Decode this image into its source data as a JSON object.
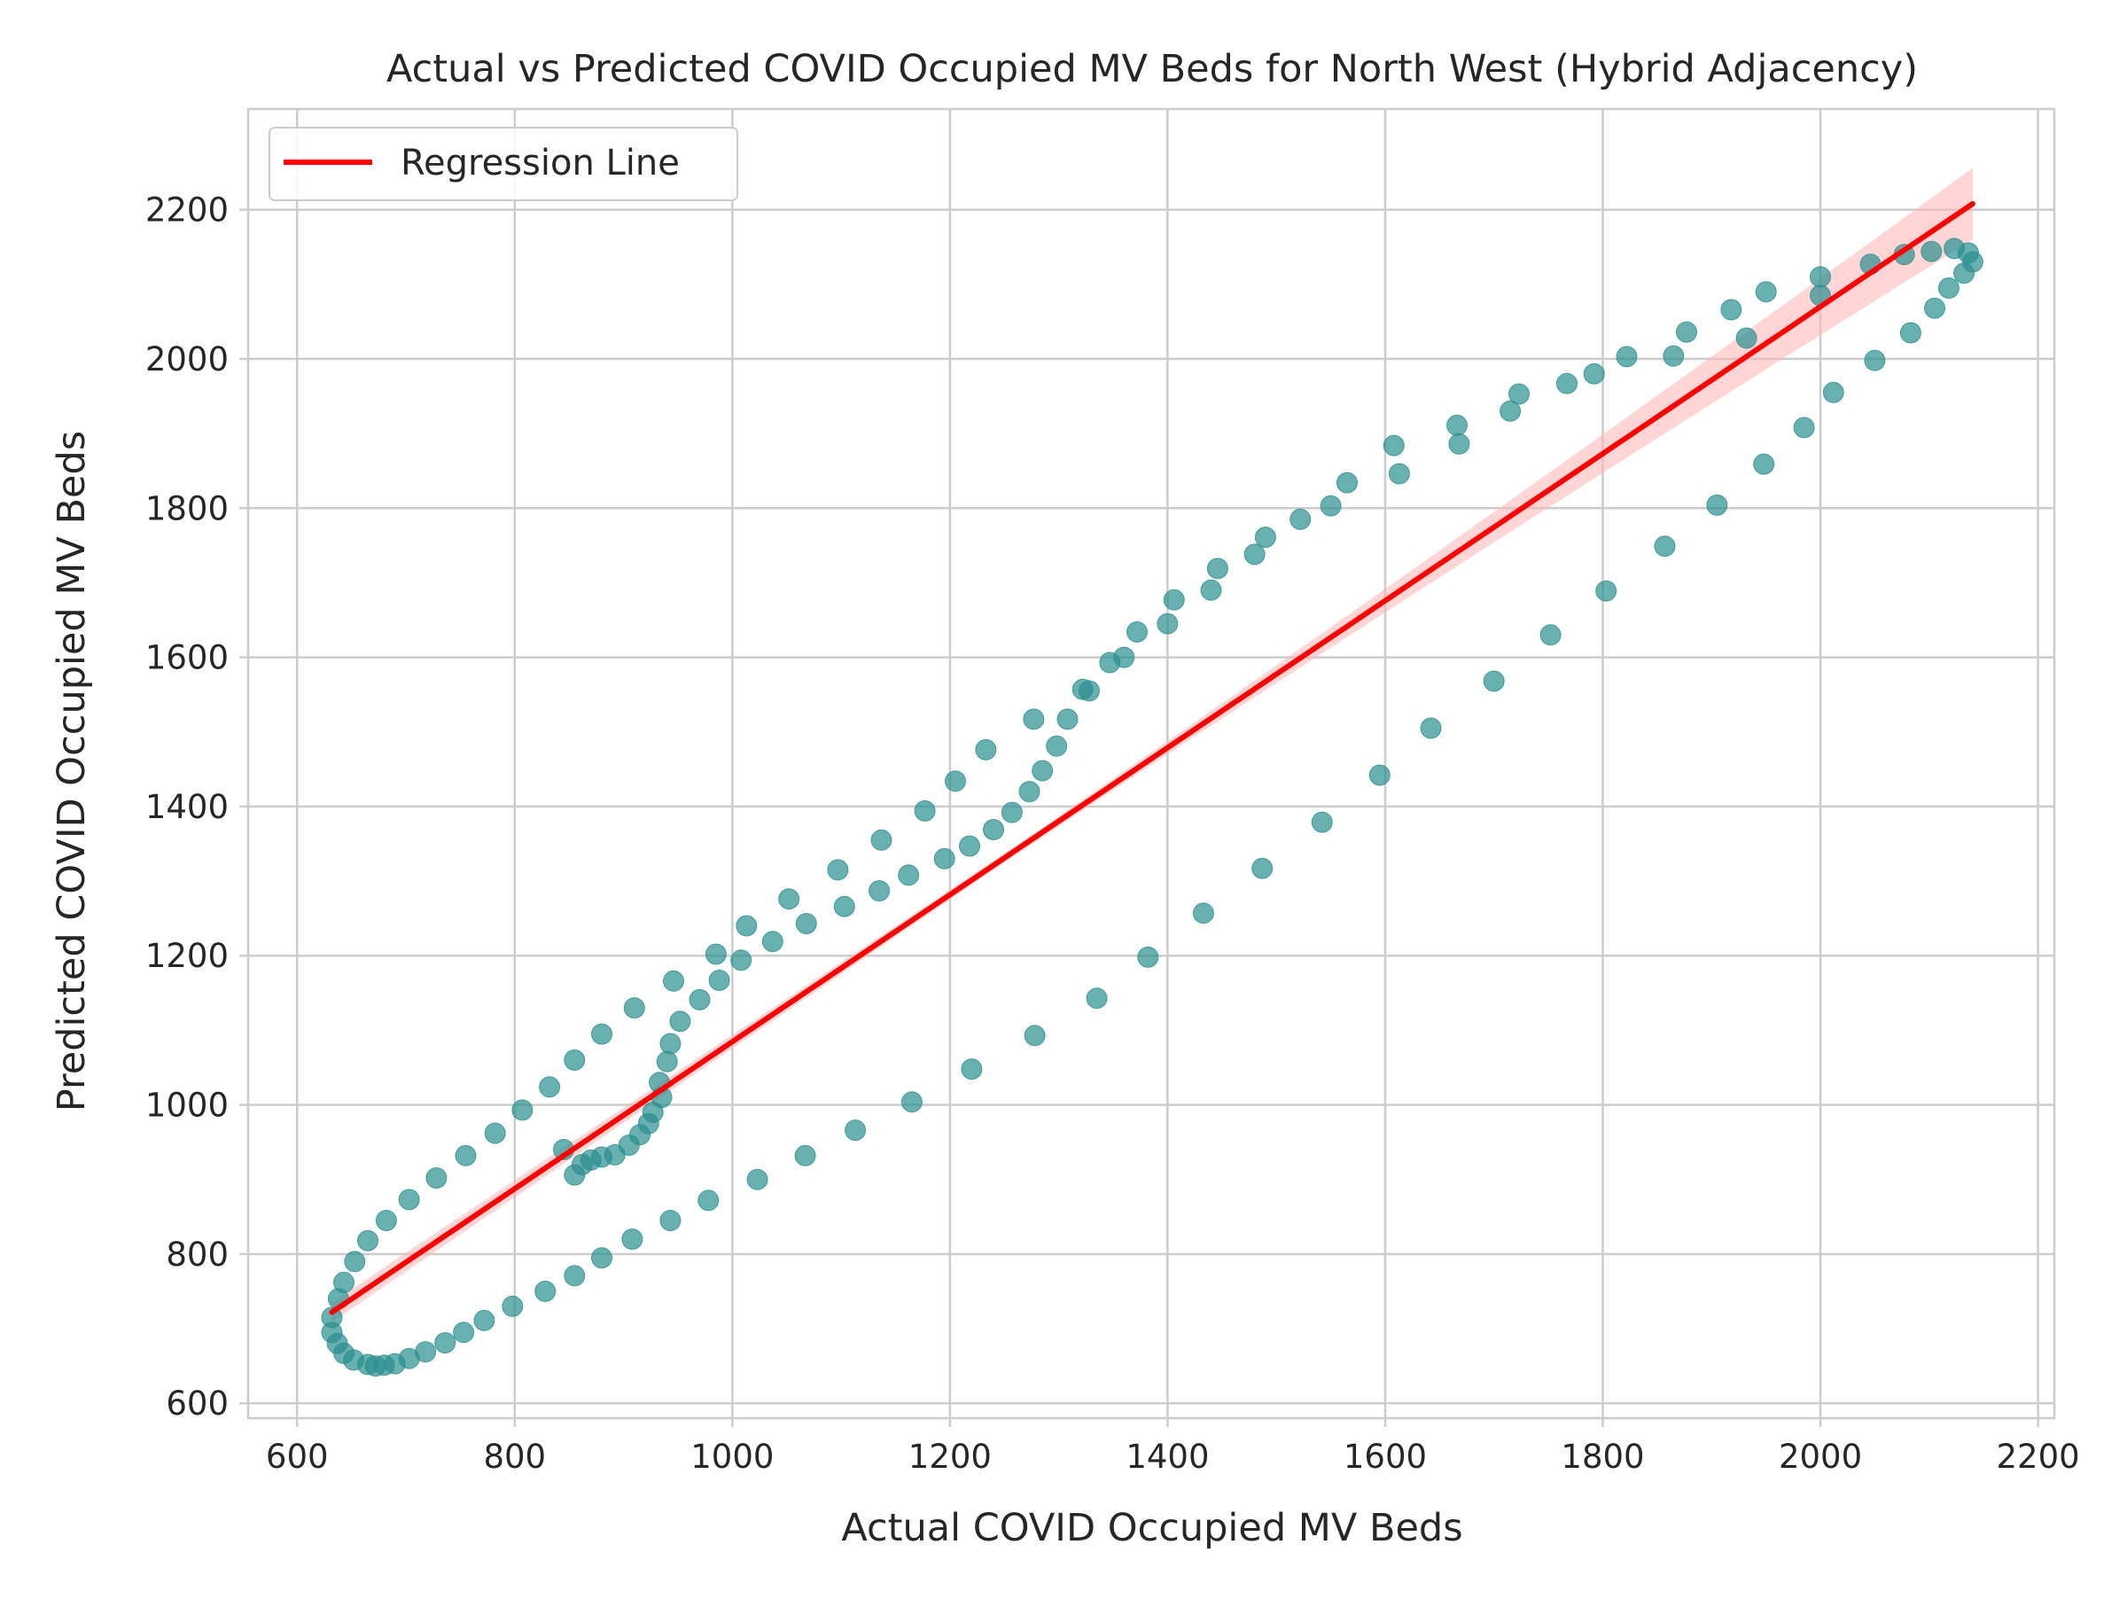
{
  "chart_data": {
    "type": "scatter",
    "title": "Actual vs Predicted COVID Occupied MV Beds for North West (Hybrid Adjacency)",
    "xlabel": "Actual COVID Occupied MV Beds",
    "ylabel": "Predicted COVID Occupied MV Beds",
    "xlim": [
      555,
      2215
    ],
    "ylim": [
      580,
      2335
    ],
    "xticks": [
      600,
      800,
      1000,
      1200,
      1400,
      1600,
      1800,
      2000,
      2200
    ],
    "yticks": [
      600,
      800,
      1000,
      1200,
      1400,
      1600,
      1800,
      2000,
      2200
    ],
    "grid": true,
    "legend": {
      "position": "top-left",
      "entries": [
        "Regression Line"
      ]
    },
    "colors": {
      "points": "#2a8f8f",
      "regression": "#ff0000",
      "ci_band": "#ffb3b3"
    },
    "regression_line": {
      "x": [
        632,
        2140
      ],
      "y": [
        722,
        2208
      ]
    },
    "ci_band": {
      "half_width_start": 13,
      "half_width_mid": 6,
      "half_width_end": 48
    },
    "points": [
      {
        "x": 632,
        "y": 715
      },
      {
        "x": 638,
        "y": 740
      },
      {
        "x": 643,
        "y": 762
      },
      {
        "x": 653,
        "y": 790
      },
      {
        "x": 665,
        "y": 818
      },
      {
        "x": 682,
        "y": 845
      },
      {
        "x": 703,
        "y": 873
      },
      {
        "x": 728,
        "y": 902
      },
      {
        "x": 755,
        "y": 932
      },
      {
        "x": 782,
        "y": 962
      },
      {
        "x": 807,
        "y": 993
      },
      {
        "x": 832,
        "y": 1024
      },
      {
        "x": 855,
        "y": 1060
      },
      {
        "x": 880,
        "y": 1095
      },
      {
        "x": 910,
        "y": 1130
      },
      {
        "x": 946,
        "y": 1166
      },
      {
        "x": 632,
        "y": 695
      },
      {
        "x": 637,
        "y": 680
      },
      {
        "x": 643,
        "y": 667
      },
      {
        "x": 652,
        "y": 658
      },
      {
        "x": 665,
        "y": 652
      },
      {
        "x": 672,
        "y": 650
      },
      {
        "x": 680,
        "y": 651
      },
      {
        "x": 690,
        "y": 653
      },
      {
        "x": 703,
        "y": 660
      },
      {
        "x": 718,
        "y": 669
      },
      {
        "x": 736,
        "y": 681
      },
      {
        "x": 753,
        "y": 695
      },
      {
        "x": 772,
        "y": 711
      },
      {
        "x": 798,
        "y": 730
      },
      {
        "x": 828,
        "y": 750
      },
      {
        "x": 855,
        "y": 771
      },
      {
        "x": 880,
        "y": 795
      },
      {
        "x": 908,
        "y": 820
      },
      {
        "x": 943,
        "y": 845
      },
      {
        "x": 978,
        "y": 872
      },
      {
        "x": 1023,
        "y": 900
      },
      {
        "x": 1067,
        "y": 932
      },
      {
        "x": 1113,
        "y": 966
      },
      {
        "x": 1165,
        "y": 1004
      },
      {
        "x": 1220,
        "y": 1048
      },
      {
        "x": 1278,
        "y": 1093
      },
      {
        "x": 1335,
        "y": 1143
      },
      {
        "x": 1382,
        "y": 1198
      },
      {
        "x": 1433,
        "y": 1257
      },
      {
        "x": 1487,
        "y": 1317
      },
      {
        "x": 1542,
        "y": 1379
      },
      {
        "x": 1595,
        "y": 1442
      },
      {
        "x": 1642,
        "y": 1505
      },
      {
        "x": 1700,
        "y": 1568
      },
      {
        "x": 1752,
        "y": 1630
      },
      {
        "x": 1803,
        "y": 1689
      },
      {
        "x": 1857,
        "y": 1749
      },
      {
        "x": 1905,
        "y": 1804
      },
      {
        "x": 1948,
        "y": 1859
      },
      {
        "x": 1985,
        "y": 1908
      },
      {
        "x": 2012,
        "y": 1955
      },
      {
        "x": 2050,
        "y": 1998
      },
      {
        "x": 2083,
        "y": 2035
      },
      {
        "x": 2105,
        "y": 2068
      },
      {
        "x": 2118,
        "y": 2095
      },
      {
        "x": 2132,
        "y": 2115
      },
      {
        "x": 2140,
        "y": 2130
      },
      {
        "x": 2136,
        "y": 2142
      },
      {
        "x": 2123,
        "y": 2148
      },
      {
        "x": 2102,
        "y": 2144
      },
      {
        "x": 2077,
        "y": 2140
      },
      {
        "x": 2046,
        "y": 2127
      },
      {
        "x": 2000,
        "y": 2110
      },
      {
        "x": 2000,
        "y": 2085
      },
      {
        "x": 1950,
        "y": 2090
      },
      {
        "x": 1932,
        "y": 2028
      },
      {
        "x": 1918,
        "y": 2066
      },
      {
        "x": 1877,
        "y": 2036
      },
      {
        "x": 1865,
        "y": 2004
      },
      {
        "x": 1822,
        "y": 2003
      },
      {
        "x": 1792,
        "y": 1980
      },
      {
        "x": 1767,
        "y": 1967
      },
      {
        "x": 1723,
        "y": 1953
      },
      {
        "x": 1715,
        "y": 1930
      },
      {
        "x": 1668,
        "y": 1886
      },
      {
        "x": 1666,
        "y": 1911
      },
      {
        "x": 1613,
        "y": 1846
      },
      {
        "x": 1608,
        "y": 1884
      },
      {
        "x": 1565,
        "y": 1834
      },
      {
        "x": 1550,
        "y": 1803
      },
      {
        "x": 1522,
        "y": 1785
      },
      {
        "x": 1490,
        "y": 1761
      },
      {
        "x": 1480,
        "y": 1738
      },
      {
        "x": 1446,
        "y": 1719
      },
      {
        "x": 1440,
        "y": 1690
      },
      {
        "x": 1406,
        "y": 1677
      },
      {
        "x": 1400,
        "y": 1645
      },
      {
        "x": 1372,
        "y": 1634
      },
      {
        "x": 1360,
        "y": 1600
      },
      {
        "x": 1347,
        "y": 1593
      },
      {
        "x": 1328,
        "y": 1555
      },
      {
        "x": 1322,
        "y": 1557
      },
      {
        "x": 1308,
        "y": 1517
      },
      {
        "x": 1298,
        "y": 1481
      },
      {
        "x": 1285,
        "y": 1448
      },
      {
        "x": 1277,
        "y": 1517
      },
      {
        "x": 1273,
        "y": 1420
      },
      {
        "x": 1257,
        "y": 1392
      },
      {
        "x": 1240,
        "y": 1369
      },
      {
        "x": 1233,
        "y": 1476
      },
      {
        "x": 1218,
        "y": 1347
      },
      {
        "x": 1205,
        "y": 1434
      },
      {
        "x": 1195,
        "y": 1330
      },
      {
        "x": 1177,
        "y": 1394
      },
      {
        "x": 1162,
        "y": 1308
      },
      {
        "x": 1137,
        "y": 1355
      },
      {
        "x": 1135,
        "y": 1287
      },
      {
        "x": 1103,
        "y": 1266
      },
      {
        "x": 1097,
        "y": 1315
      },
      {
        "x": 1068,
        "y": 1243
      },
      {
        "x": 1052,
        "y": 1276
      },
      {
        "x": 1037,
        "y": 1219
      },
      {
        "x": 1013,
        "y": 1240
      },
      {
        "x": 1008,
        "y": 1194
      },
      {
        "x": 988,
        "y": 1167
      },
      {
        "x": 985,
        "y": 1202
      },
      {
        "x": 970,
        "y": 1141
      },
      {
        "x": 952,
        "y": 1112
      },
      {
        "x": 943,
        "y": 1082
      },
      {
        "x": 940,
        "y": 1058
      },
      {
        "x": 933,
        "y": 1030
      },
      {
        "x": 935,
        "y": 1010
      },
      {
        "x": 927,
        "y": 990
      },
      {
        "x": 923,
        "y": 975
      },
      {
        "x": 915,
        "y": 960
      },
      {
        "x": 905,
        "y": 946
      },
      {
        "x": 892,
        "y": 933
      },
      {
        "x": 880,
        "y": 930
      },
      {
        "x": 870,
        "y": 926
      },
      {
        "x": 862,
        "y": 920
      },
      {
        "x": 855,
        "y": 906
      },
      {
        "x": 845,
        "y": 940
      }
    ]
  }
}
